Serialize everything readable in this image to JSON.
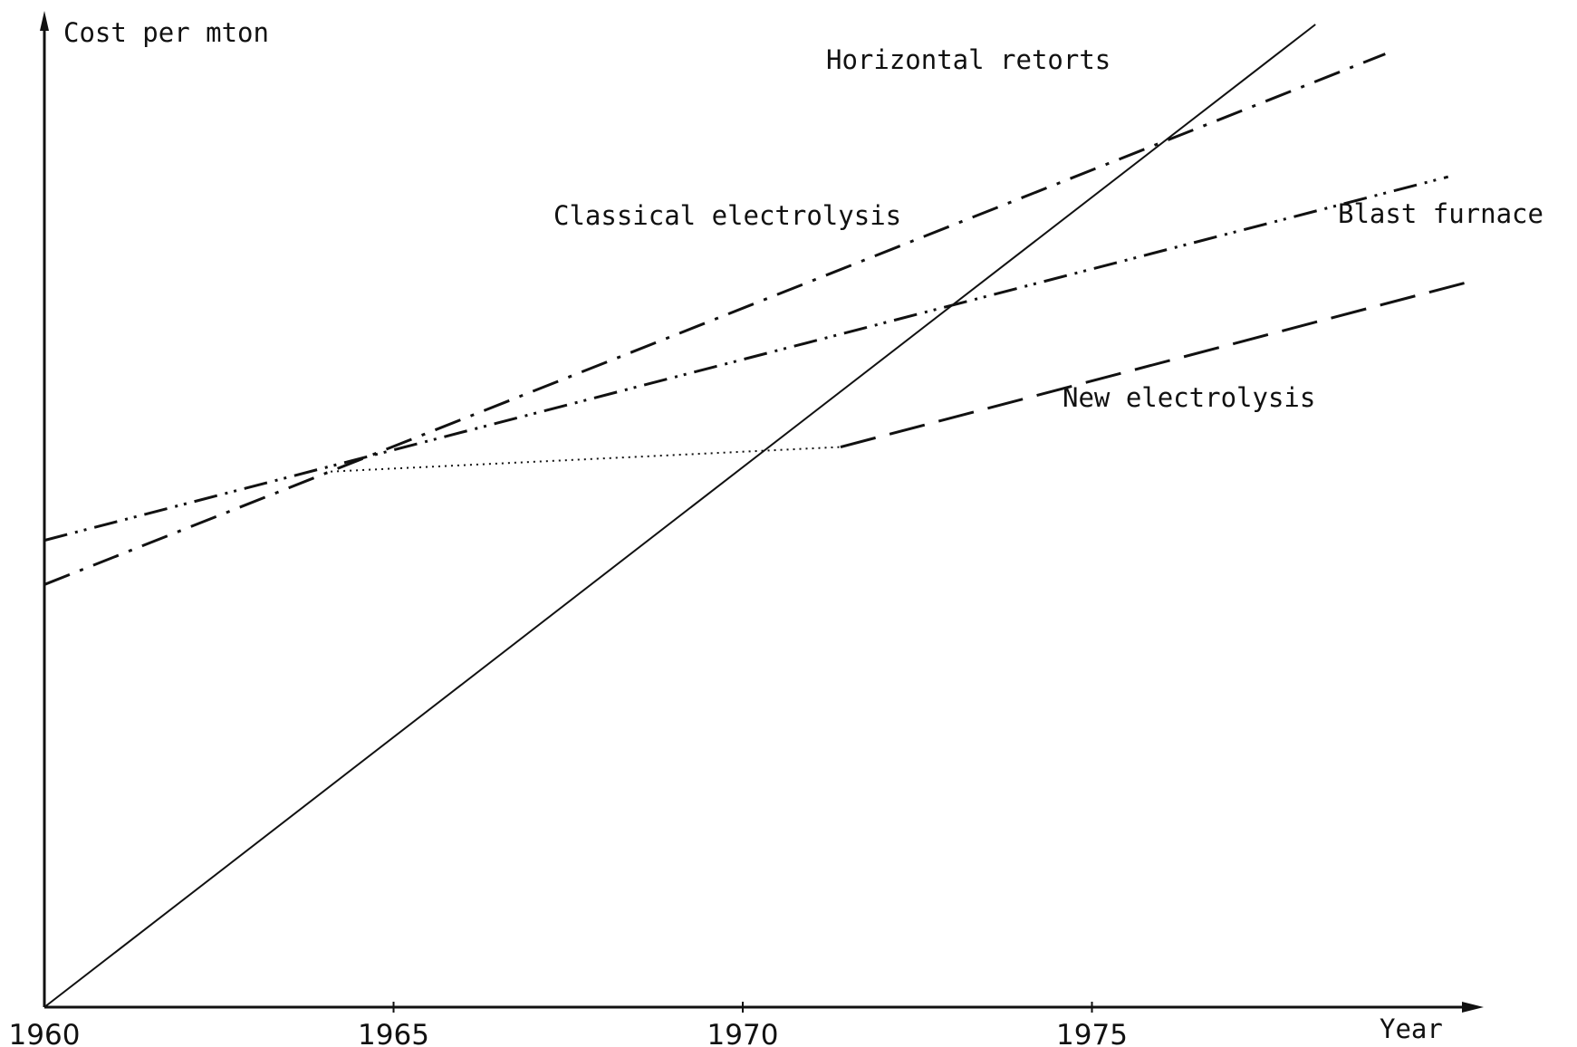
{
  "chart_data": {
    "type": "line",
    "title": "",
    "xlabel": "Year",
    "ylabel": "Cost per mton",
    "xlim": [
      1960,
      1980.5
    ],
    "ylim": [
      0,
      100
    ],
    "x_ticks": [
      1960,
      1965,
      1970,
      1975
    ],
    "grid": false,
    "legend": "none",
    "series": [
      {
        "name": "Horizontal retorts",
        "style": "solid",
        "points": [
          [
            1960,
            0
          ],
          [
            1978.2,
            100
          ]
        ]
      },
      {
        "name": "Classical electrolysis",
        "style": "dash-dot",
        "points": [
          [
            1960,
            43
          ],
          [
            1979.2,
            97
          ]
        ]
      },
      {
        "name": "Blast furnace",
        "style": "dash-dot-dot",
        "points": [
          [
            1960,
            47.5
          ],
          [
            1980.1,
            84.5
          ]
        ]
      },
      {
        "name": "New electrolysis",
        "style": "dotted-then-dashed",
        "points": [
          [
            1964.1,
            54.5
          ],
          [
            1971.4,
            57
          ],
          [
            1980.5,
            74
          ]
        ]
      }
    ],
    "annotations": [
      "Horizontal retorts",
      "Classical electrolysis",
      "Blast furnace",
      "New electrolysis"
    ]
  }
}
